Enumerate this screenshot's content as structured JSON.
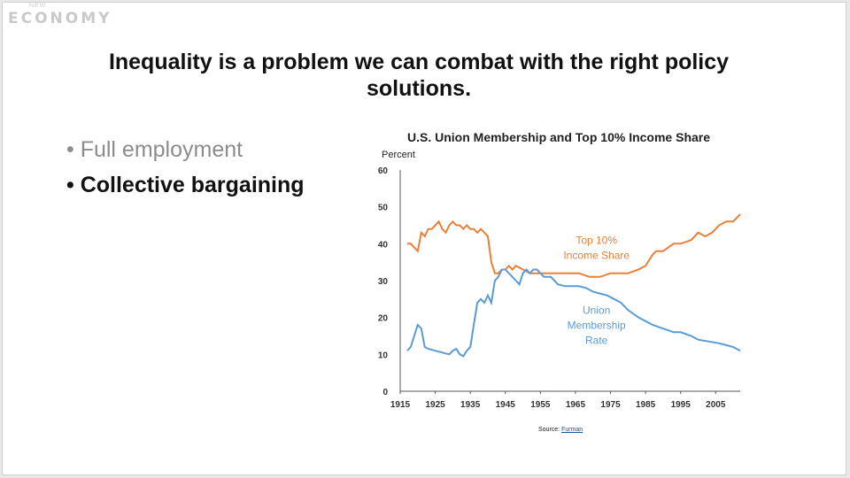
{
  "header": {
    "logo_small": "NEW",
    "logo": "ECONOMY"
  },
  "slide": {
    "title_line1": "Inequality is a problem we can combat with the right policy",
    "title_line2": "solutions.",
    "bullets": [
      {
        "label": "• Full employment",
        "state": "dim"
      },
      {
        "label": "• Collective bargaining",
        "state": "active"
      }
    ],
    "source_label": "Source:",
    "source_link": "Furman"
  },
  "chart_data": {
    "type": "line",
    "title": "U.S. Union Membership and Top 10% Income Share",
    "ylabel": "Percent",
    "ylim": [
      0,
      60
    ],
    "yticks": [
      0,
      10,
      20,
      30,
      40,
      50,
      60
    ],
    "xlim": [
      1915,
      2012
    ],
    "xticks": [
      1915,
      1925,
      1935,
      1945,
      1955,
      1965,
      1975,
      1985,
      1995,
      2005
    ],
    "series": [
      {
        "name": "Top 10% Income Share",
        "color": "#e8803a",
        "annotation": [
          "Top 10%",
          "Income Share"
        ],
        "x": [
          1917,
          1918,
          1919,
          1920,
          1921,
          1922,
          1923,
          1924,
          1925,
          1926,
          1927,
          1928,
          1929,
          1930,
          1931,
          1932,
          1933,
          1934,
          1935,
          1936,
          1937,
          1938,
          1939,
          1940,
          1941,
          1942,
          1943,
          1944,
          1945,
          1946,
          1947,
          1948,
          1950,
          1952,
          1954,
          1956,
          1958,
          1960,
          1963,
          1966,
          1969,
          1972,
          1975,
          1978,
          1980,
          1983,
          1985,
          1987,
          1988,
          1990,
          1993,
          1995,
          1998,
          2000,
          2002,
          2004,
          2006,
          2008,
          2010,
          2012
        ],
        "values": [
          40,
          40,
          39,
          38,
          43,
          42,
          44,
          44,
          45,
          46,
          44,
          43,
          45,
          46,
          45,
          45,
          44,
          45,
          44,
          44,
          43,
          44,
          43,
          42,
          35,
          32,
          32,
          33,
          33,
          34,
          33,
          34,
          33,
          32,
          32,
          32,
          32,
          32,
          32,
          32,
          31,
          31,
          32,
          32,
          32,
          33,
          34,
          37,
          38,
          38,
          40,
          40,
          41,
          43,
          42,
          43,
          45,
          46,
          46,
          48
        ]
      },
      {
        "name": "Union Membership Rate",
        "color": "#5b9bd5",
        "annotation": [
          "Union",
          "Membership",
          "Rate"
        ],
        "x": [
          1917,
          1918,
          1919,
          1920,
          1921,
          1922,
          1923,
          1925,
          1927,
          1929,
          1930,
          1931,
          1932,
          1933,
          1934,
          1935,
          1936,
          1937,
          1938,
          1939,
          1940,
          1941,
          1942,
          1943,
          1944,
          1945,
          1946,
          1947,
          1948,
          1949,
          1950,
          1951,
          1952,
          1953,
          1954,
          1955,
          1956,
          1958,
          1960,
          1962,
          1964,
          1966,
          1968,
          1970,
          1972,
          1974,
          1976,
          1978,
          1980,
          1983,
          1985,
          1987,
          1990,
          1993,
          1995,
          1998,
          2000,
          2003,
          2006,
          2008,
          2010,
          2012
        ],
        "values": [
          11,
          12,
          15,
          18,
          17,
          12,
          11.5,
          11,
          10.5,
          10,
          11,
          11.5,
          10,
          9.5,
          11,
          12,
          18,
          24,
          25,
          24,
          26,
          24,
          30,
          31,
          33,
          33,
          32,
          31,
          30,
          29,
          32,
          33,
          32,
          33,
          33,
          32,
          31,
          31,
          29,
          28.5,
          28.5,
          28.5,
          28,
          27,
          26.5,
          26,
          25,
          24,
          22,
          20,
          19,
          18,
          17,
          16,
          16,
          15,
          14,
          13.5,
          13,
          12.5,
          12,
          11
        ]
      }
    ]
  }
}
